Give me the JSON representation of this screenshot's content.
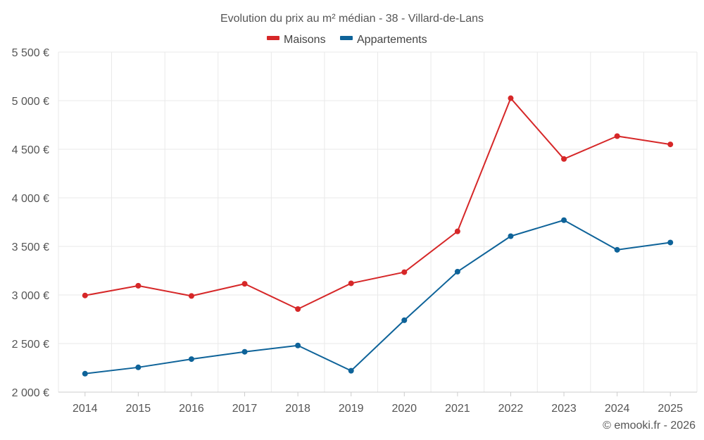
{
  "chart_data": {
    "type": "line",
    "title": "Evolution du prix au m² médian - 38 - Villard-de-Lans",
    "categories": [
      "2014",
      "2015",
      "2016",
      "2017",
      "2018",
      "2019",
      "2020",
      "2021",
      "2022",
      "2023",
      "2024",
      "2025"
    ],
    "series": [
      {
        "name": "Maisons",
        "color": "#d62728",
        "values": [
          2995,
          3095,
          2990,
          3115,
          2855,
          3120,
          3235,
          3655,
          5025,
          4400,
          4635,
          4550
        ]
      },
      {
        "name": "Appartements",
        "color": "#0e6399",
        "values": [
          2190,
          2255,
          2340,
          2415,
          2480,
          2220,
          2740,
          3240,
          3605,
          3770,
          3465,
          3540
        ]
      }
    ],
    "ylim": [
      2000,
      5500
    ],
    "yticks": [
      2000,
      2500,
      3000,
      3500,
      4000,
      4500,
      5000,
      5500
    ],
    "ytick_labels": [
      "2 000 €",
      "2 500 €",
      "3 000 €",
      "3 500 €",
      "4 000 €",
      "4 500 €",
      "5 000 €",
      "5 500 €"
    ],
    "grid": true,
    "legend_position": "top-center",
    "credit": "© emooki.fr - 2026"
  }
}
